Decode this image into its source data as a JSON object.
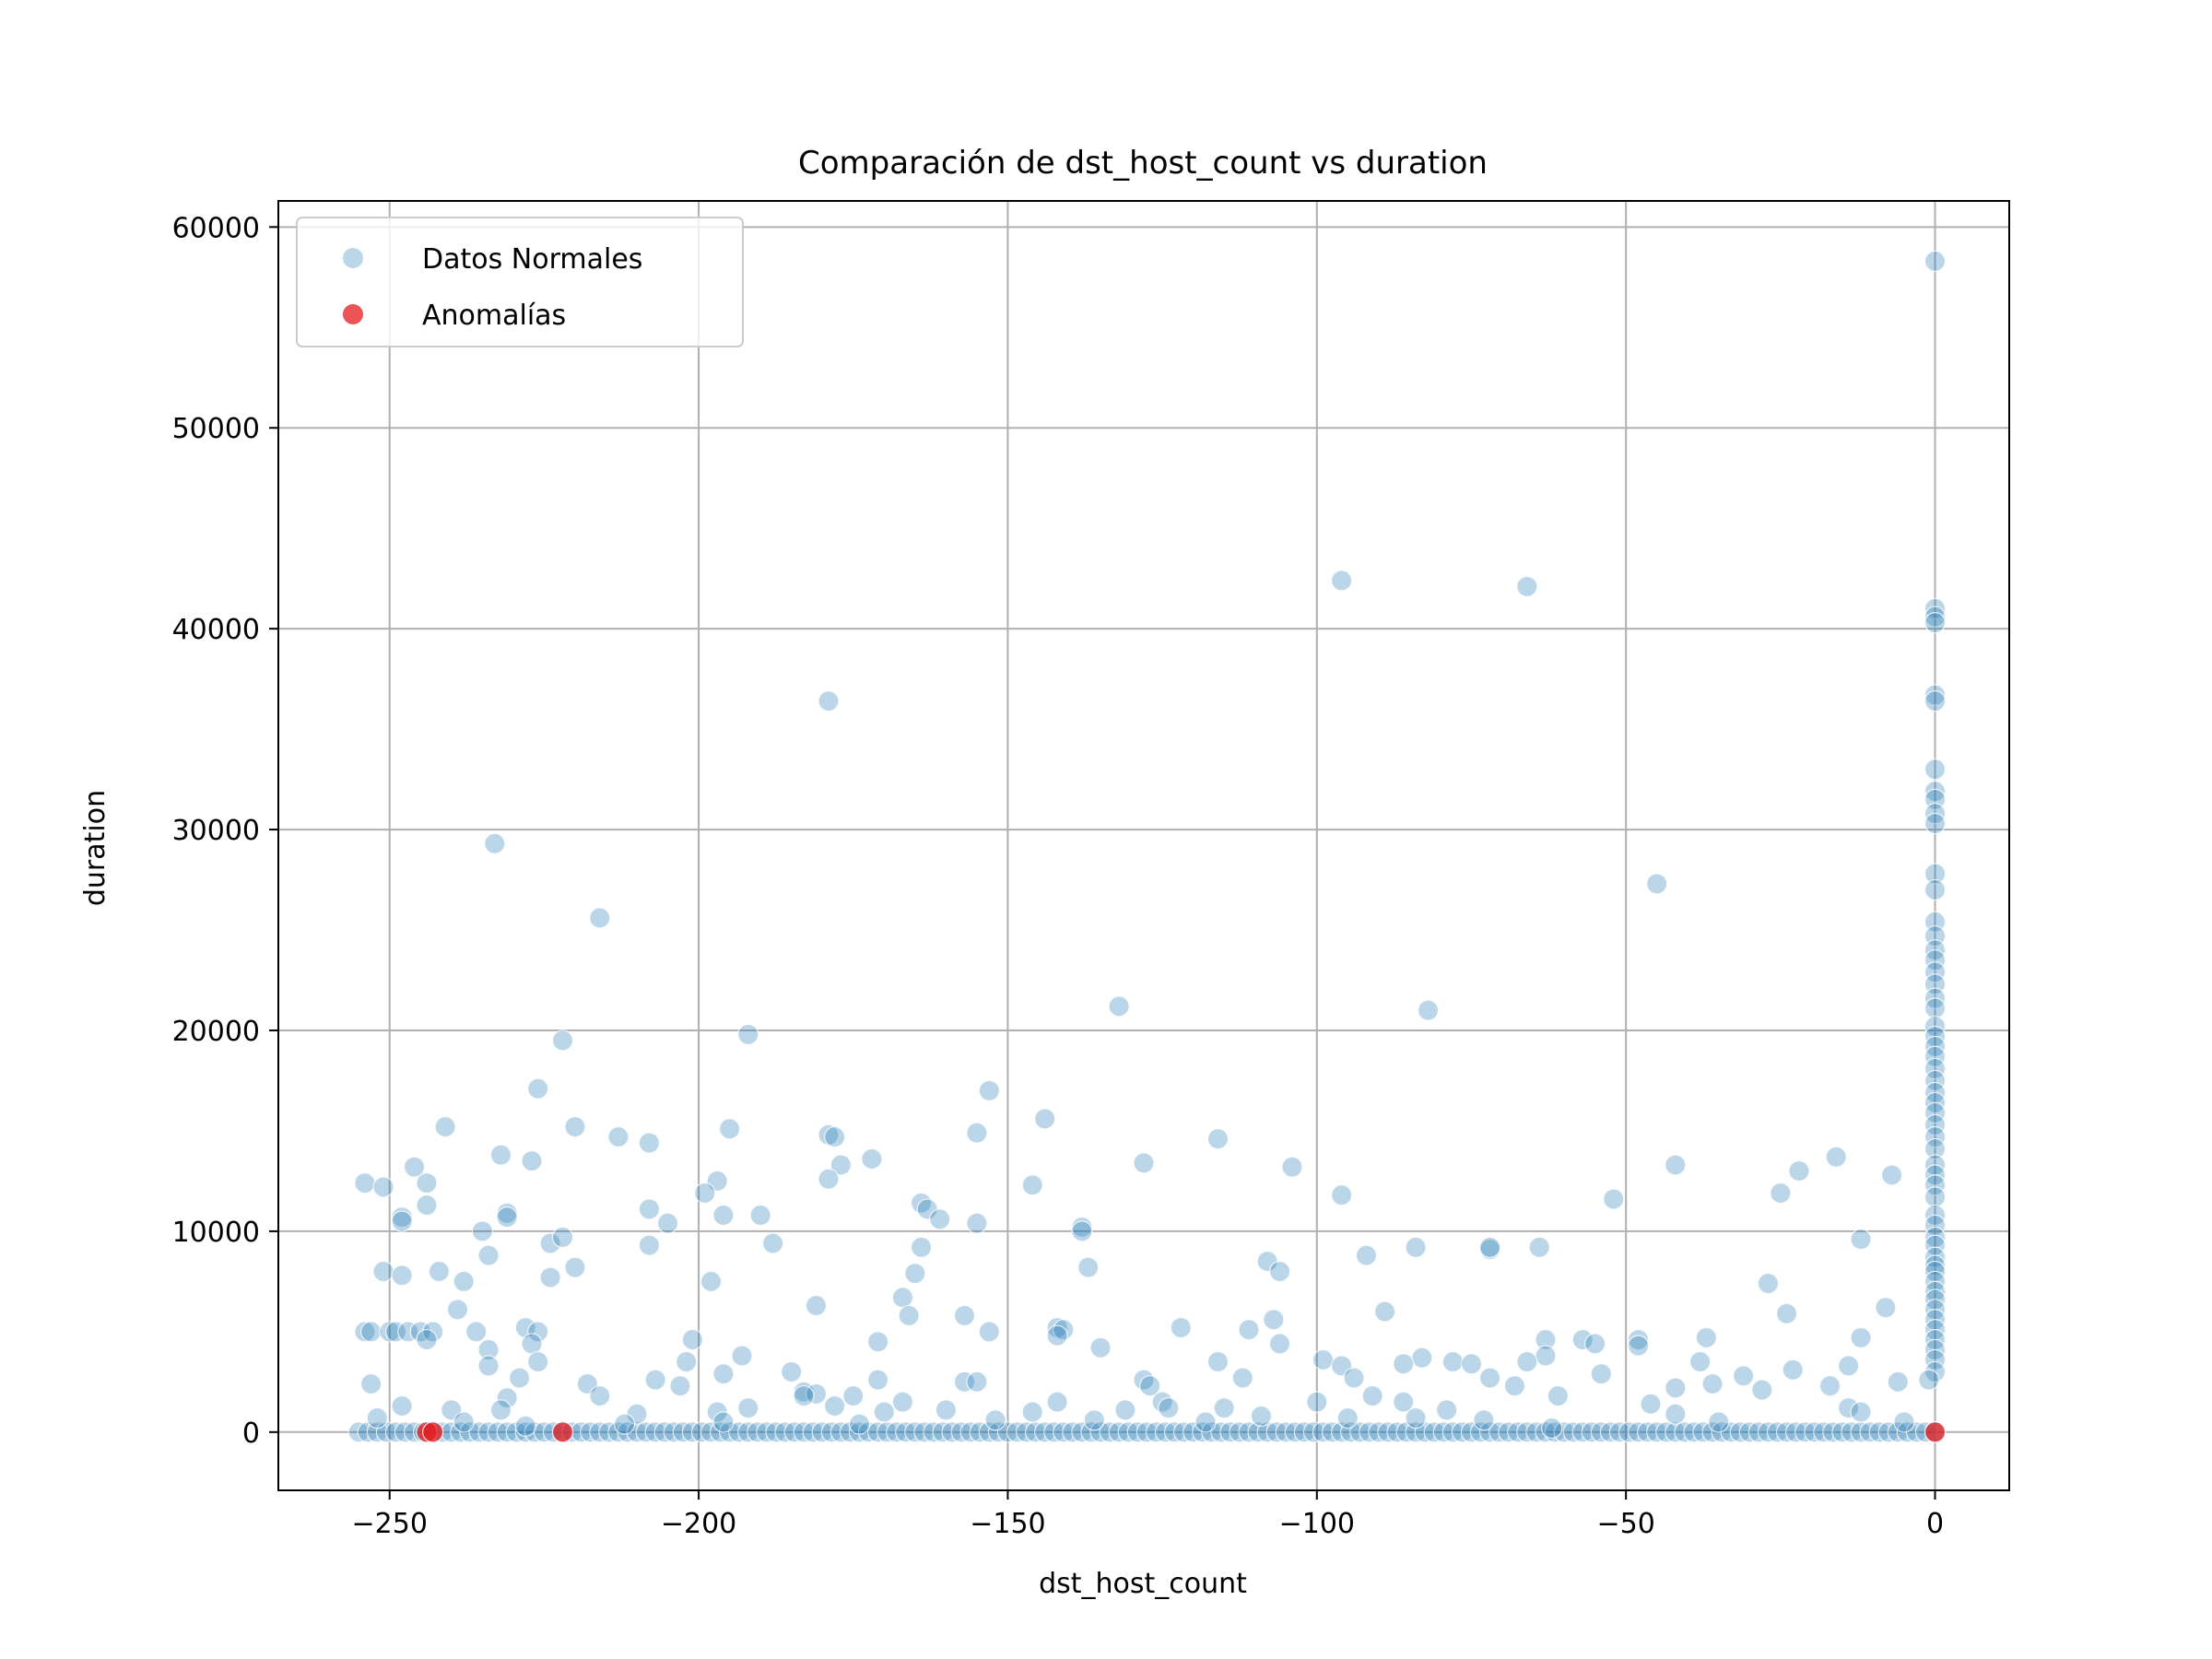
{
  "chart_data": {
    "type": "scatter",
    "title": "Comparación de dst_host_count vs duration",
    "xlabel": "dst_host_count",
    "ylabel": "duration",
    "xlim": [
      -268,
      12
    ],
    "ylim": [
      -2900,
      61300
    ],
    "xticks": [
      -250,
      -200,
      -150,
      -100,
      -50,
      0
    ],
    "xtick_labels": [
      "−250",
      "−200",
      "−150",
      "−100",
      "−50",
      "0"
    ],
    "yticks": [
      0,
      10000,
      20000,
      30000,
      40000,
      50000,
      60000
    ],
    "ytick_labels": [
      "0",
      "10000",
      "20000",
      "30000",
      "40000",
      "50000",
      "60000"
    ],
    "grid": true,
    "legend_position": "top-left",
    "series": [
      {
        "name": "Datos Normales",
        "color": "#1f77b4",
        "opacity": 0.3,
        "points": [
          [
            0,
            58300
          ],
          [
            -96,
            42400
          ],
          [
            -66,
            42100
          ],
          [
            0,
            41000
          ],
          [
            0,
            40600
          ],
          [
            0,
            40300
          ],
          [
            -179,
            36400
          ],
          [
            0,
            36700
          ],
          [
            0,
            36400
          ],
          [
            0,
            33000
          ],
          [
            0,
            31900
          ],
          [
            0,
            31500
          ],
          [
            0,
            30800
          ],
          [
            0,
            30300
          ],
          [
            -233,
            29300
          ],
          [
            -45,
            27300
          ],
          [
            0,
            27800
          ],
          [
            0,
            27000
          ],
          [
            -216,
            25600
          ],
          [
            0,
            25400
          ],
          [
            0,
            24700
          ],
          [
            0,
            24000
          ],
          [
            0,
            23500
          ],
          [
            0,
            22900
          ],
          [
            0,
            22300
          ],
          [
            0,
            21600
          ],
          [
            0,
            21100
          ],
          [
            -132,
            21200
          ],
          [
            -82,
            21000
          ],
          [
            0,
            20200
          ],
          [
            0,
            19700
          ],
          [
            -222,
            19500
          ],
          [
            -192,
            19800
          ],
          [
            0,
            19200
          ],
          [
            0,
            18700
          ],
          [
            0,
            18100
          ],
          [
            0,
            17500
          ],
          [
            -226,
            17100
          ],
          [
            -153,
            17000
          ],
          [
            0,
            16900
          ],
          [
            0,
            16400
          ],
          [
            0,
            15900
          ],
          [
            -241,
            15200
          ],
          [
            -220,
            15200
          ],
          [
            -195,
            15100
          ],
          [
            -144,
            15600
          ],
          [
            -155,
            14900
          ],
          [
            -179,
            14800
          ],
          [
            -178,
            14700
          ],
          [
            -213,
            14700
          ],
          [
            -208,
            14400
          ],
          [
            -116,
            14600
          ],
          [
            0,
            15300
          ],
          [
            0,
            14700
          ],
          [
            0,
            14100
          ],
          [
            -232,
            13800
          ],
          [
            -227,
            13500
          ],
          [
            -246,
            13200
          ],
          [
            -177,
            13300
          ],
          [
            -172,
            13600
          ],
          [
            -128,
            13400
          ],
          [
            -104,
            13200
          ],
          [
            -42,
            13300
          ],
          [
            -16,
            13700
          ],
          [
            -22,
            13000
          ],
          [
            -7,
            12800
          ],
          [
            0,
            13300
          ],
          [
            0,
            12800
          ],
          [
            0,
            12300
          ],
          [
            -254,
            12400
          ],
          [
            -251,
            12200
          ],
          [
            -244,
            12400
          ],
          [
            -179,
            12600
          ],
          [
            -197,
            12500
          ],
          [
            -146,
            12300
          ],
          [
            -199,
            11900
          ],
          [
            -96,
            11800
          ],
          [
            -52,
            11600
          ],
          [
            -25,
            11900
          ],
          [
            0,
            11700
          ],
          [
            -244,
            11300
          ],
          [
            -208,
            11100
          ],
          [
            -164,
            11400
          ],
          [
            -163,
            11100
          ],
          [
            -161,
            10600
          ],
          [
            -231,
            10900
          ],
          [
            -231,
            10700
          ],
          [
            -248,
            10700
          ],
          [
            -248,
            10500
          ],
          [
            -235,
            10000
          ],
          [
            -205,
            10400
          ],
          [
            -196,
            10800
          ],
          [
            -190,
            10800
          ],
          [
            -155,
            10400
          ],
          [
            -138,
            10200
          ],
          [
            -138,
            10000
          ],
          [
            0,
            10800
          ],
          [
            0,
            10300
          ],
          [
            0,
            9700
          ],
          [
            -224,
            9400
          ],
          [
            -222,
            9700
          ],
          [
            -208,
            9300
          ],
          [
            -188,
            9400
          ],
          [
            -164,
            9200
          ],
          [
            -84,
            9200
          ],
          [
            -72,
            9100
          ],
          [
            -72,
            9200
          ],
          [
            -64,
            9200
          ],
          [
            -12,
            9600
          ],
          [
            0,
            9300
          ],
          [
            0,
            8700
          ],
          [
            0,
            8300
          ],
          [
            -234,
            8800
          ],
          [
            -220,
            8200
          ],
          [
            -137,
            8200
          ],
          [
            -108,
            8500
          ],
          [
            -106,
            8000
          ],
          [
            -92,
            8800
          ],
          [
            -251,
            8000
          ],
          [
            -248,
            7800
          ],
          [
            -242,
            8000
          ],
          [
            -238,
            7500
          ],
          [
            -224,
            7700
          ],
          [
            -198,
            7500
          ],
          [
            -165,
            7900
          ],
          [
            0,
            8000
          ],
          [
            0,
            7500
          ],
          [
            0,
            7000
          ],
          [
            -27,
            7400
          ],
          [
            -181,
            6300
          ],
          [
            -167,
            6700
          ],
          [
            -8,
            6200
          ],
          [
            -239,
            6100
          ],
          [
            -89,
            6000
          ],
          [
            -24,
            5900
          ],
          [
            -166,
            5800
          ],
          [
            -157,
            5800
          ],
          [
            -107,
            5600
          ],
          [
            0,
            6600
          ],
          [
            0,
            6100
          ],
          [
            0,
            5600
          ],
          [
            -254,
            5000
          ],
          [
            -253,
            5000
          ],
          [
            -250,
            5000
          ],
          [
            -249,
            5000
          ],
          [
            -247,
            5000
          ],
          [
            -245,
            5000
          ],
          [
            -243,
            5000
          ],
          [
            -244,
            4600
          ],
          [
            -236,
            5000
          ],
          [
            -228,
            5200
          ],
          [
            -226,
            5000
          ],
          [
            -153,
            5000
          ],
          [
            -142,
            5200
          ],
          [
            -141,
            5100
          ],
          [
            -122,
            5200
          ],
          [
            -111,
            5100
          ],
          [
            0,
            5100
          ],
          [
            -227,
            4400
          ],
          [
            -234,
            4100
          ],
          [
            -201,
            4600
          ],
          [
            -171,
            4500
          ],
          [
            -142,
            4800
          ],
          [
            -106,
            4400
          ],
          [
            -63,
            4600
          ],
          [
            -57,
            4600
          ],
          [
            -55,
            4400
          ],
          [
            -48,
            4600
          ],
          [
            -48,
            4300
          ],
          [
            -37,
            4700
          ],
          [
            -12,
            4700
          ],
          [
            0,
            4600
          ],
          [
            0,
            4100
          ],
          [
            -226,
            3500
          ],
          [
            -234,
            3300
          ],
          [
            -202,
            3500
          ],
          [
            -193,
            3800
          ],
          [
            -135,
            4200
          ],
          [
            -116,
            3500
          ],
          [
            -99,
            3600
          ],
          [
            -96,
            3300
          ],
          [
            -83,
            3700
          ],
          [
            -78,
            3500
          ],
          [
            -75,
            3400
          ],
          [
            -63,
            3800
          ],
          [
            -31,
            2800
          ],
          [
            -38,
            3500
          ],
          [
            0,
            3600
          ],
          [
            0,
            3000
          ],
          [
            -196,
            2900
          ],
          [
            -185,
            3000
          ],
          [
            -231,
            1700
          ],
          [
            -229,
            2700
          ],
          [
            -207,
            2600
          ],
          [
            -203,
            2300
          ],
          [
            -183,
            2000
          ],
          [
            -171,
            2600
          ],
          [
            -157,
            2500
          ],
          [
            -155,
            2500
          ],
          [
            -128,
            2600
          ],
          [
            -127,
            2300
          ],
          [
            -112,
            2700
          ],
          [
            -94,
            2700
          ],
          [
            -86,
            1500
          ],
          [
            -72,
            2700
          ],
          [
            -68,
            2300
          ],
          [
            -54,
            2900
          ],
          [
            -42,
            2200
          ],
          [
            -36,
            2400
          ],
          [
            -28,
            2100
          ],
          [
            -23,
            3100
          ],
          [
            -17,
            2300
          ],
          [
            -14,
            3300
          ],
          [
            -6,
            2500
          ],
          [
            -1,
            2600
          ],
          [
            -253,
            2400
          ],
          [
            -218,
            2400
          ],
          [
            -181,
            1900
          ],
          [
            -183,
            1800
          ],
          [
            -175,
            1800
          ],
          [
            -178,
            1300
          ],
          [
            -167,
            1500
          ],
          [
            -142,
            1500
          ],
          [
            -136,
            600
          ],
          [
            -125,
            1500
          ],
          [
            -115,
            1200
          ],
          [
            -100,
            1500
          ],
          [
            -86,
            3400
          ],
          [
            -91,
            1800
          ],
          [
            -79,
            1100
          ],
          [
            -66,
            3500
          ],
          [
            -61,
            1800
          ],
          [
            -46,
            1400
          ],
          [
            -42,
            900
          ],
          [
            -14,
            1200
          ],
          [
            -12,
            1000
          ],
          [
            -248,
            1300
          ],
          [
            -240,
            1100
          ],
          [
            -232,
            1100
          ],
          [
            -216,
            1800
          ],
          [
            -210,
            900
          ],
          [
            -197,
            1000
          ],
          [
            -192,
            1200
          ],
          [
            -170,
            1000
          ],
          [
            -160,
            1100
          ],
          [
            -146,
            1000
          ],
          [
            -131,
            1100
          ],
          [
            -124,
            1200
          ],
          [
            -109,
            800
          ],
          [
            -95,
            700
          ],
          [
            -73,
            600
          ],
          [
            -5,
            500
          ],
          [
            -252,
            700
          ],
          [
            -238,
            500
          ],
          [
            -228,
            300
          ],
          [
            -212,
            400
          ],
          [
            -196,
            500
          ],
          [
            -174,
            400
          ],
          [
            -152,
            600
          ],
          [
            -118,
            500
          ],
          [
            -84,
            700
          ],
          [
            -62,
            200
          ],
          [
            -35,
            500
          ]
        ]
      },
      {
        "name": "Anomalías",
        "color": "#e41a1c",
        "opacity": 0.75,
        "points": [
          [
            -244,
            0
          ],
          [
            -243,
            0
          ],
          [
            -222,
            0
          ],
          [
            0,
            0
          ]
        ]
      }
    ]
  }
}
